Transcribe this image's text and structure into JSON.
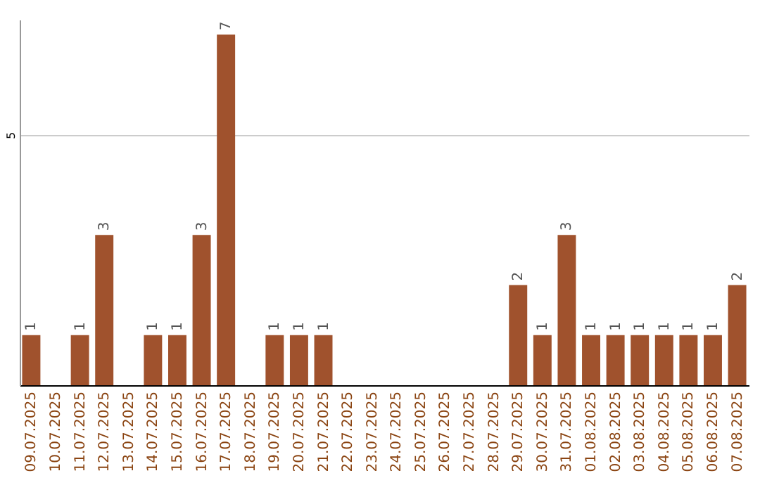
{
  "chart_data": {
    "type": "bar",
    "categories": [
      "09.07.2025",
      "10.07.2025",
      "11.07.2025",
      "12.07.2025",
      "13.07.2025",
      "14.07.2025",
      "15.07.2025",
      "16.07.2025",
      "17.07.2025",
      "18.07.2025",
      "19.07.2025",
      "20.07.2025",
      "21.07.2025",
      "22.07.2025",
      "23.07.2025",
      "24.07.2025",
      "25.07.2025",
      "26.07.2025",
      "27.07.2025",
      "28.07.2025",
      "29.07.2025",
      "30.07.2025",
      "31.07.2025",
      "01.08.2025",
      "02.08.2025",
      "03.08.2025",
      "04.08.2025",
      "05.08.2025",
      "06.08.2025",
      "07.08.2025"
    ],
    "values": [
      1,
      0,
      1,
      3,
      0,
      1,
      1,
      3,
      7,
      0,
      1,
      1,
      1,
      0,
      0,
      0,
      0,
      0,
      0,
      0,
      2,
      1,
      3,
      1,
      1,
      1,
      1,
      1,
      1,
      2
    ],
    "value_labels": [
      "1",
      null,
      "1",
      "3",
      null,
      "1",
      "1",
      "3",
      "7",
      null,
      "1",
      "1",
      "1",
      null,
      null,
      null,
      null,
      null,
      null,
      null,
      "2",
      "1",
      "3",
      "1",
      "1",
      "1",
      "1",
      "1",
      "1",
      "2"
    ],
    "color": "#a0522d",
    "ylim": [
      0,
      7.3
    ],
    "yticks": [
      5
    ],
    "grid": "y"
  }
}
